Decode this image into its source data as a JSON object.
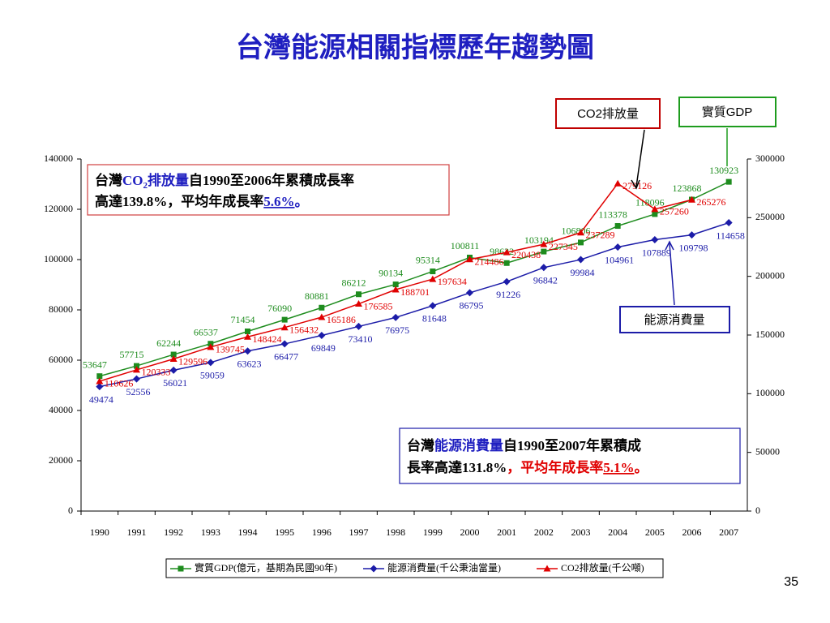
{
  "chart_data": {
    "type": "line",
    "title": "台灣能源相關指標歷年趨勢圖",
    "categories": [
      "1990",
      "1991",
      "1992",
      "1993",
      "1994",
      "1995",
      "1996",
      "1997",
      "1998",
      "1999",
      "2000",
      "2001",
      "2002",
      "2003",
      "2004",
      "2005",
      "2006",
      "2007"
    ],
    "series": [
      {
        "name": "實質GDP(億元，基期為民國90年)",
        "color": "#1e8c1e",
        "marker": "square",
        "values": [
          53647,
          57715,
          62244,
          66537,
          71454,
          76090,
          80881,
          86212,
          90134,
          95314,
          100811,
          98622,
          103194,
          106806,
          113378,
          118096,
          123868,
          130923
        ]
      },
      {
        "name": "能源消費量(千公秉油當量)",
        "color": "#1c1ca8",
        "marker": "diamond",
        "values": [
          49474,
          52556,
          56021,
          59059,
          63623,
          66477,
          69849,
          73410,
          76975,
          81648,
          86795,
          91226,
          96842,
          99984,
          104961,
          107889,
          109798,
          114658
        ]
      },
      {
        "name": "CO2排放量(千公噸)",
        "color": "#e00000",
        "marker": "triangle",
        "axis": "y2",
        "values": [
          110626,
          120333,
          129596,
          139745,
          148424,
          156432,
          165186,
          176585,
          188701,
          197634,
          214486,
          220438,
          227345,
          237289,
          279126,
          257260,
          265276,
          null
        ]
      }
    ],
    "ylim": [
      0,
      140000
    ],
    "yticks": [
      0,
      20000,
      40000,
      60000,
      80000,
      100000,
      120000,
      140000
    ],
    "y2lim": [
      0,
      300000
    ],
    "y2ticks": [
      0,
      50000,
      100000,
      150000,
      200000,
      250000,
      300000
    ],
    "callouts": [
      "CO2排放量",
      "實質GDP",
      "能源消費量"
    ],
    "notes": [
      [
        "台灣",
        "CO",
        "2",
        "排放量",
        "自1990至2006年累積成長率",
        "高達139.8%，平均年成長率",
        "5.6%",
        "。"
      ],
      [
        "台灣",
        "能源消費量",
        "自1990至2007年累積成",
        "長率高達131.8%",
        "，平均年成長率",
        "5.1%",
        "。"
      ]
    ]
  },
  "page_number": "35"
}
